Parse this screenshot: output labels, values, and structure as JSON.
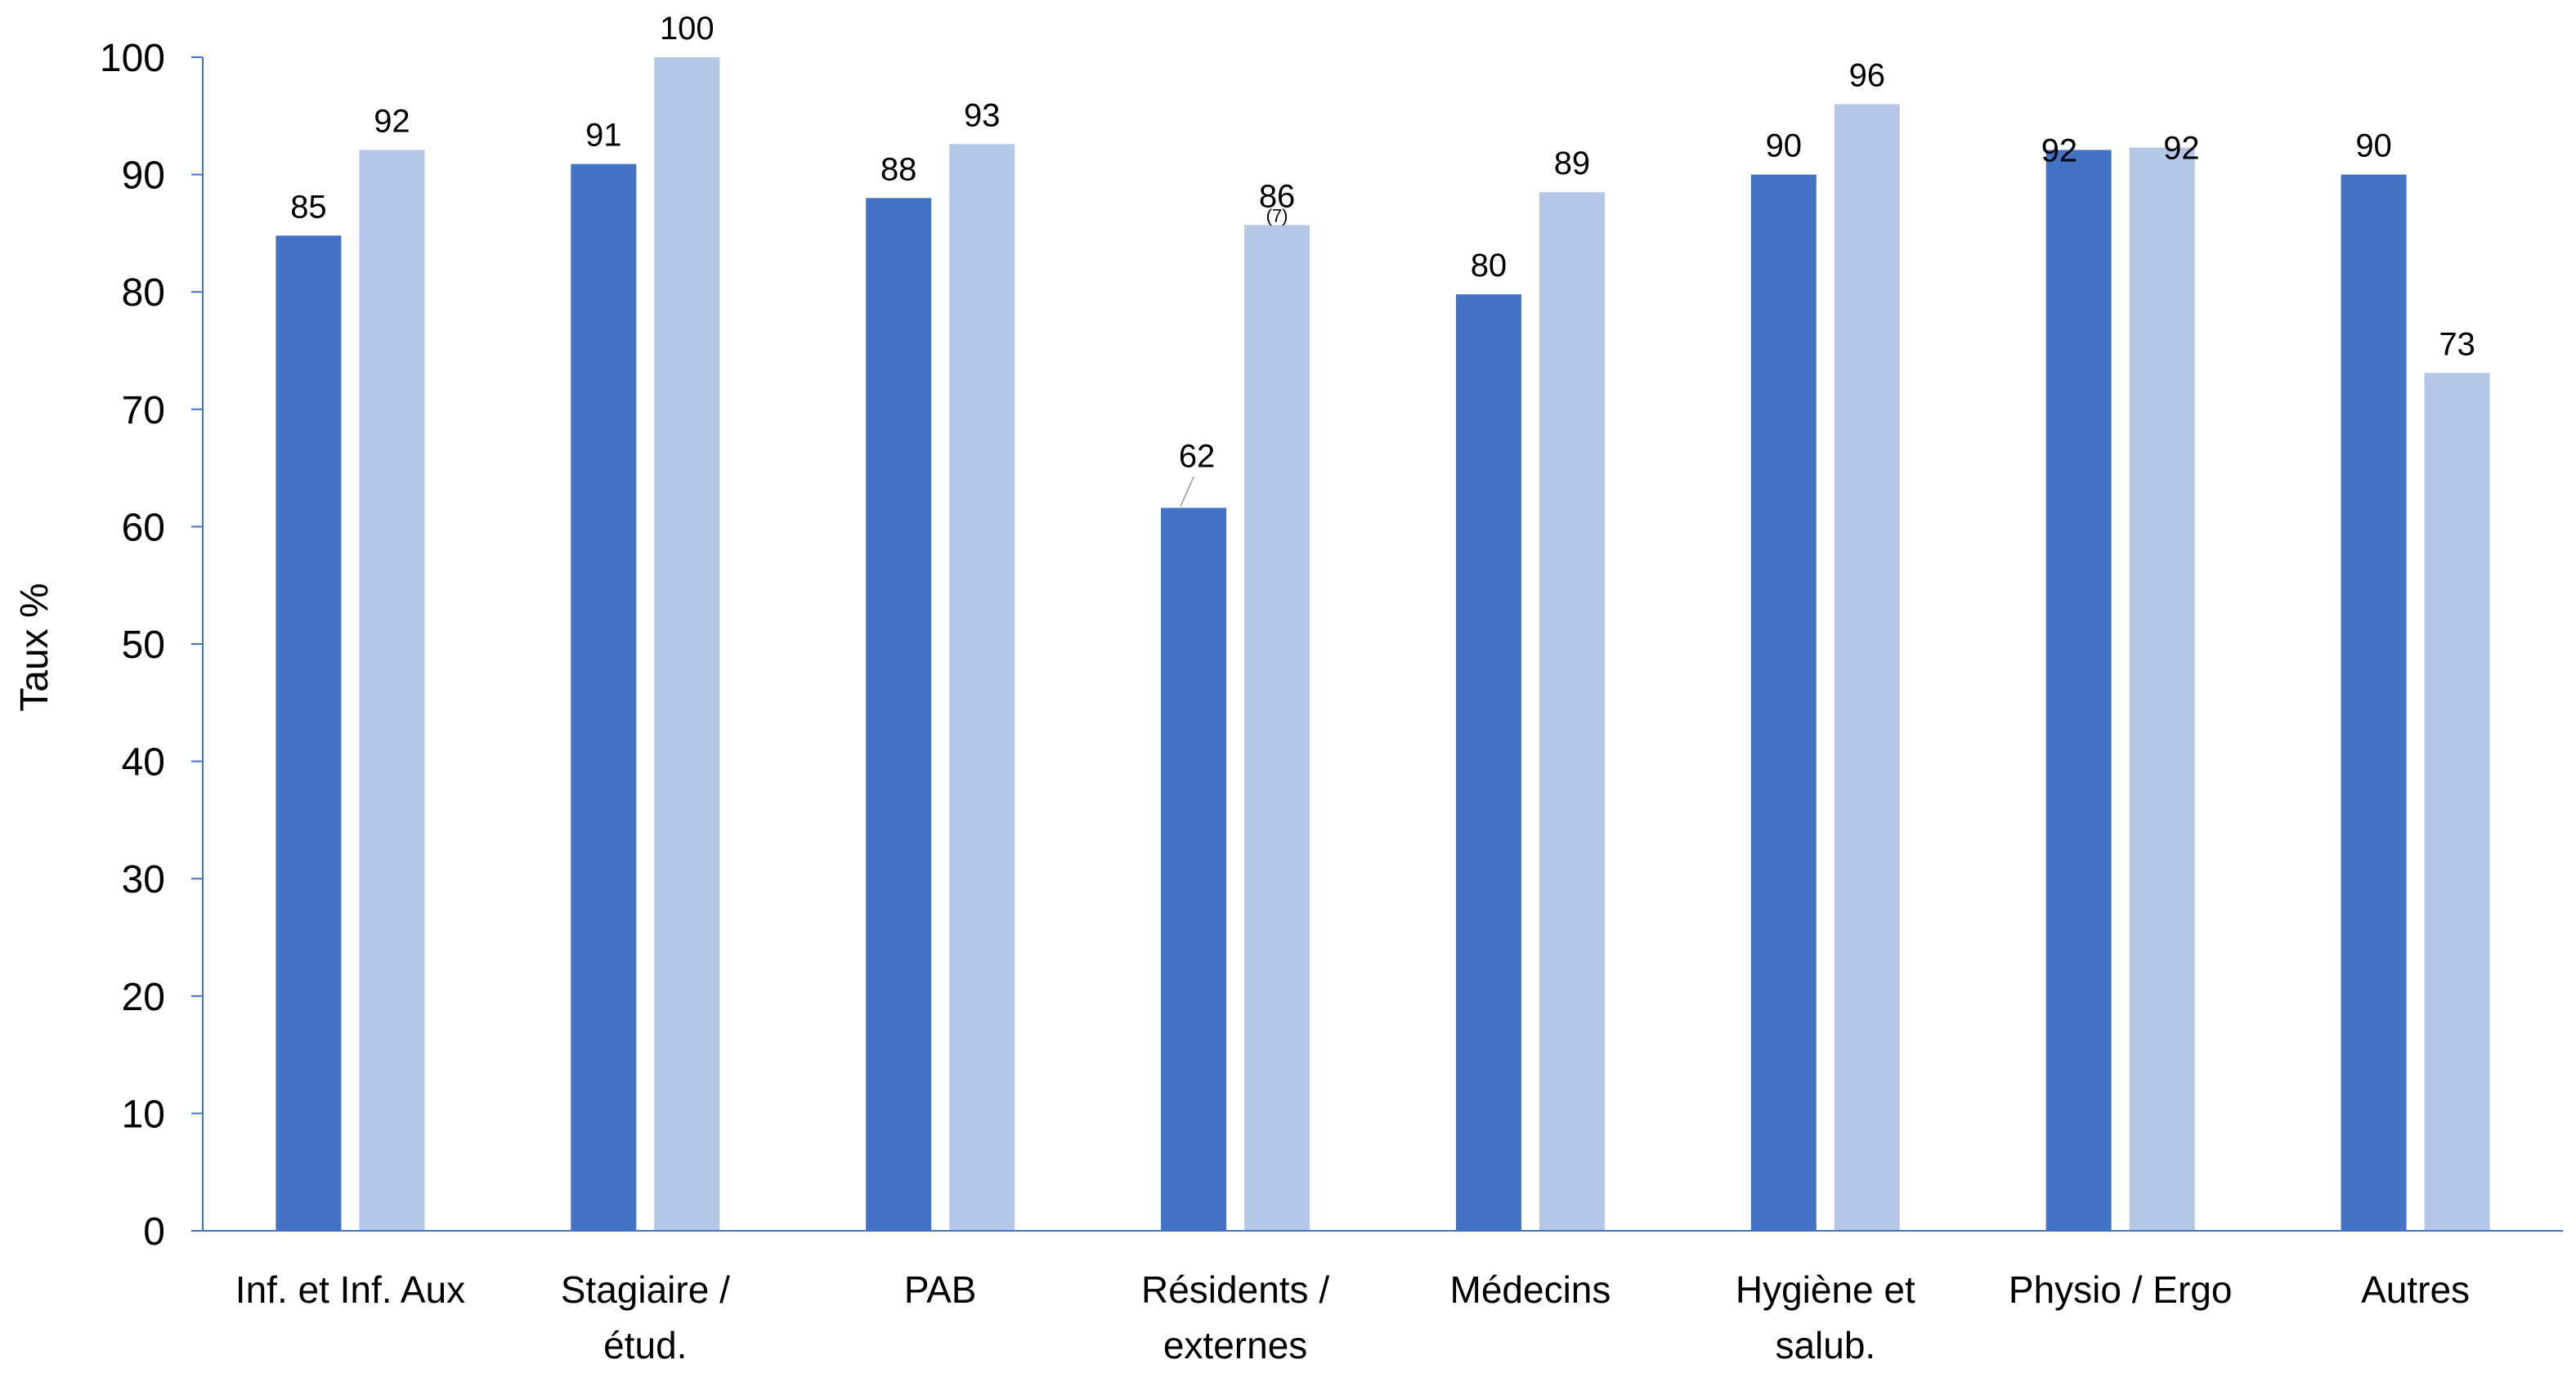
{
  "chart_data": {
    "type": "bar",
    "title": "",
    "xlabel": "",
    "ylabel": "Taux %",
    "ylim": [
      0,
      100
    ],
    "yticks": [
      "0",
      "10",
      "20",
      "30",
      "40",
      "50",
      "60",
      "70",
      "80",
      "90",
      "100"
    ],
    "grid": false,
    "legend": "none",
    "categories": [
      [
        "Inf. et Inf. Aux"
      ],
      [
        "Stagiaire /",
        "étud."
      ],
      [
        "PAB"
      ],
      [
        "Résidents /",
        "externes"
      ],
      [
        "Médecins"
      ],
      [
        "Hygiène et",
        "salub."
      ],
      [
        "Physio / Ergo"
      ],
      [
        "Autres"
      ]
    ],
    "series": [
      {
        "color": "#4472C4",
        "values": [
          84.8,
          90.9,
          88.0,
          61.6,
          79.8,
          90.0,
          92.1,
          90.0
        ],
        "labels": [
          "85",
          "91",
          "88",
          "62",
          "80",
          "90",
          "92",
          "90"
        ]
      },
      {
        "color": "#B4C7E7",
        "values": [
          92.1,
          100,
          92.6,
          85.7,
          88.5,
          96.0,
          92.3,
          73.1
        ],
        "labels": [
          "92",
          "100",
          "93",
          "86",
          "89",
          "96",
          "92",
          "73"
        ]
      }
    ],
    "annotations": [
      {
        "series": 1,
        "category": 3,
        "text": "(7)"
      }
    ],
    "axis_color": "#4472C4"
  }
}
